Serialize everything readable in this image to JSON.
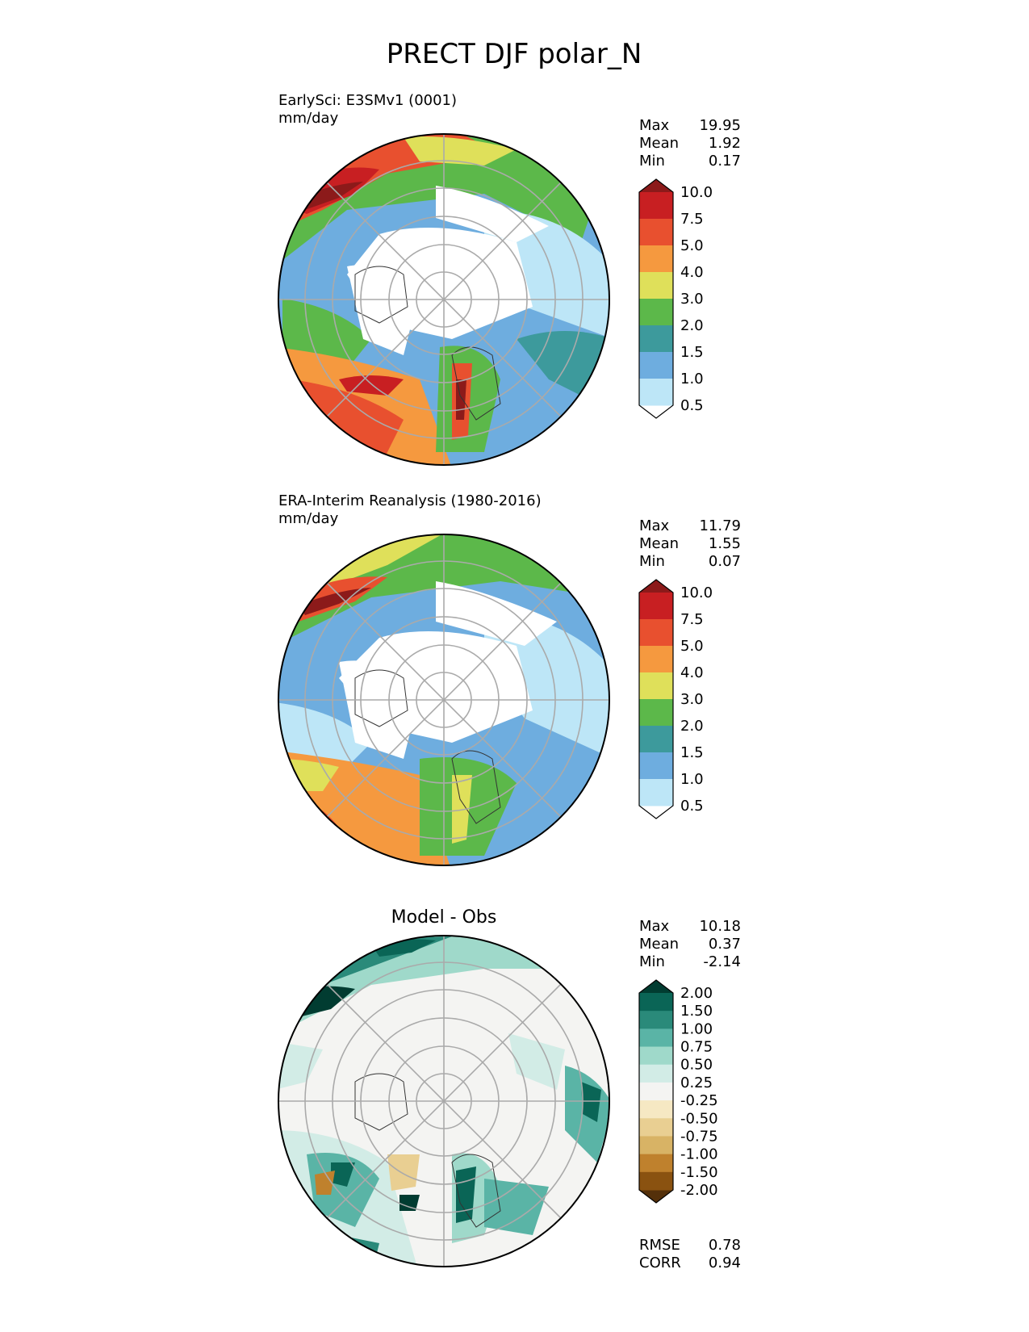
{
  "figure": {
    "title": "PRECT DJF polar_N"
  },
  "chart_data": [
    {
      "type": "heatmap",
      "projection": "north polar stereographic",
      "title": "EarlySci: E3SMv1 (0001)",
      "units": "mm/day",
      "stats": {
        "max": "19.95",
        "mean": "1.92",
        "min": "0.17"
      },
      "colorbar": {
        "levels": [
          "0.5",
          "1.0",
          "1.5",
          "2.0",
          "3.0",
          "4.0",
          "5.0",
          "7.5",
          "10.0"
        ],
        "colors": [
          "#ffffff",
          "#bde6f7",
          "#6eaddf",
          "#3d9a9c",
          "#5cb84a",
          "#dfe05a",
          "#f5993f",
          "#e8502f",
          "#c81f22",
          "#8c1a1a"
        ],
        "extend": "both"
      }
    },
    {
      "type": "heatmap",
      "projection": "north polar stereographic",
      "title": "ERA-Interim Reanalysis (1980-2016)",
      "units": "mm/day",
      "stats": {
        "max": "11.79",
        "mean": "1.55",
        "min": "0.07"
      },
      "colorbar": {
        "levels": [
          "0.5",
          "1.0",
          "1.5",
          "2.0",
          "3.0",
          "4.0",
          "5.0",
          "7.5",
          "10.0"
        ],
        "colors": [
          "#ffffff",
          "#bde6f7",
          "#6eaddf",
          "#3d9a9c",
          "#5cb84a",
          "#dfe05a",
          "#f5993f",
          "#e8502f",
          "#c81f22",
          "#8c1a1a"
        ],
        "extend": "both"
      }
    },
    {
      "type": "heatmap",
      "projection": "north polar stereographic",
      "title": "Model - Obs",
      "stats": {
        "max": "10.18",
        "mean": "0.37",
        "min": "-2.14"
      },
      "metrics": {
        "rmse_label": "RMSE",
        "rmse": "0.78",
        "corr_label": "CORR",
        "corr": "0.94"
      },
      "colorbar": {
        "levels": [
          "-2.00",
          "-1.50",
          "-1.00",
          "-0.75",
          "-0.50",
          "-0.25",
          "0.25",
          "0.50",
          "0.75",
          "1.00",
          "1.50",
          "2.00"
        ],
        "colors": [
          "#54300a",
          "#8a5210",
          "#bf812d",
          "#d8b365",
          "#e9cf92",
          "#f6e8c3",
          "#f4f4f2",
          "#d2ece6",
          "#9fd9ca",
          "#5ab4a6",
          "#2a8a7a",
          "#0a6556",
          "#013c31"
        ],
        "extend": "both"
      }
    }
  ],
  "labels": {
    "max": "Max",
    "mean": "Mean",
    "min": "Min"
  }
}
